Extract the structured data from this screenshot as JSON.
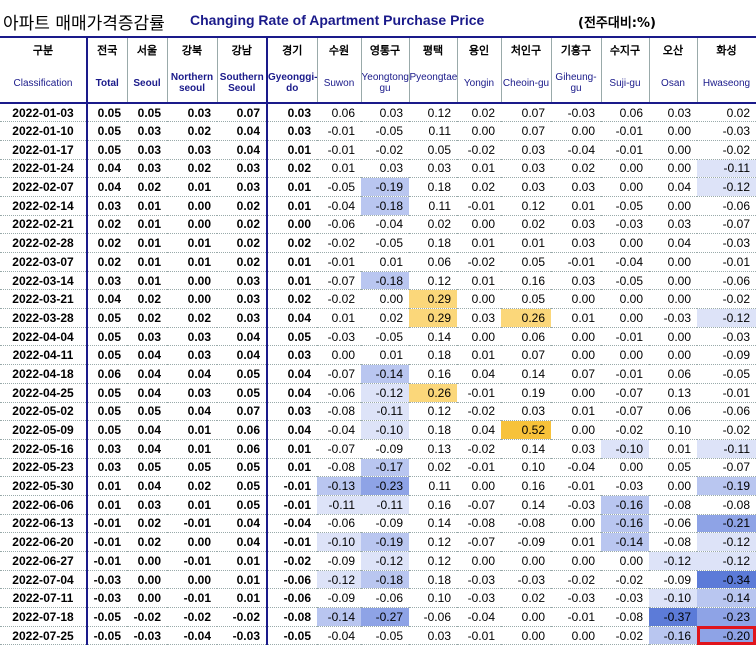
{
  "title": {
    "korean": "아파트 매매가격증감률",
    "english": "Changing Rate of Apartment Purchase Price",
    "unit": "(전주대비:%)"
  },
  "columns": [
    {
      "ko": "구분",
      "en": "Classification"
    },
    {
      "ko": "전국",
      "en": "Total"
    },
    {
      "ko": "서울",
      "en": "Seoul"
    },
    {
      "ko": "강북",
      "en": "Northern seoul"
    },
    {
      "ko": "강남",
      "en": "Southern Seoul"
    },
    {
      "ko": "경기",
      "en": "Gyeonggi-do"
    },
    {
      "ko": "수원",
      "en": "Suwon"
    },
    {
      "ko": "영통구",
      "en": "Yeongtong-gu"
    },
    {
      "ko": "평택",
      "en": "Pyeongtaek"
    },
    {
      "ko": "용인",
      "en": "Yongin"
    },
    {
      "ko": "처인구",
      "en": "Cheoin-gu"
    },
    {
      "ko": "기흥구",
      "en": "Giheung-gu"
    },
    {
      "ko": "수지구",
      "en": "Suji-gu"
    },
    {
      "ko": "오산",
      "en": "Osan"
    },
    {
      "ko": "화성",
      "en": "Hwaseong"
    }
  ],
  "colors": {
    "title_blue": "#1a1a8a",
    "neg_light": "#dde3f8",
    "neg_mid": "#b9c6f0",
    "neg_strong": "#8ea3e6",
    "neg_darkest": "#5c7bd8",
    "pos_light": "#fde7b0",
    "pos_mid": "#fbd77a",
    "pos_strong": "#f7c23a",
    "highlight_border": "#e0141c"
  },
  "rows": [
    {
      "date": "2022-01-03",
      "values": [
        "0.05",
        "0.05",
        "0.03",
        "0.07",
        "0.03",
        "0.06",
        "0.03",
        "0.12",
        "0.02",
        "0.07",
        "-0.03",
        "0.06",
        "0.03",
        "0.02"
      ]
    },
    {
      "date": "2022-01-10",
      "values": [
        "0.05",
        "0.03",
        "0.02",
        "0.04",
        "0.03",
        "-0.01",
        "-0.05",
        "0.11",
        "0.00",
        "0.07",
        "0.00",
        "-0.01",
        "0.00",
        "-0.03"
      ]
    },
    {
      "date": "2022-01-17",
      "values": [
        "0.05",
        "0.03",
        "0.03",
        "0.04",
        "0.01",
        "-0.01",
        "-0.02",
        "0.05",
        "-0.02",
        "0.03",
        "-0.04",
        "-0.01",
        "0.00",
        "-0.02"
      ]
    },
    {
      "date": "2022-01-24",
      "values": [
        "0.04",
        "0.03",
        "0.02",
        "0.03",
        "0.02",
        "0.01",
        "0.03",
        "0.03",
        "0.01",
        "0.03",
        "0.02",
        "0.00",
        "0.00",
        "-0.11"
      ]
    },
    {
      "date": "2022-02-07",
      "values": [
        "0.04",
        "0.02",
        "0.01",
        "0.03",
        "0.01",
        "-0.05",
        "-0.19",
        "0.18",
        "0.02",
        "0.03",
        "0.03",
        "0.00",
        "0.04",
        "-0.12"
      ]
    },
    {
      "date": "2022-02-14",
      "values": [
        "0.03",
        "0.01",
        "0.00",
        "0.02",
        "0.01",
        "-0.04",
        "-0.18",
        "0.11",
        "-0.01",
        "0.12",
        "0.01",
        "-0.05",
        "0.00",
        "-0.06"
      ]
    },
    {
      "date": "2022-02-21",
      "values": [
        "0.02",
        "0.01",
        "0.00",
        "0.02",
        "0.00",
        "-0.06",
        "-0.04",
        "0.02",
        "0.00",
        "0.02",
        "0.03",
        "-0.03",
        "0.03",
        "-0.07"
      ]
    },
    {
      "date": "2022-02-28",
      "values": [
        "0.02",
        "0.01",
        "0.01",
        "0.02",
        "0.02",
        "-0.02",
        "-0.05",
        "0.18",
        "0.01",
        "0.01",
        "0.03",
        "0.00",
        "0.04",
        "-0.03"
      ]
    },
    {
      "date": "2022-03-07",
      "values": [
        "0.02",
        "0.01",
        "0.01",
        "0.02",
        "0.01",
        "-0.01",
        "0.01",
        "0.06",
        "-0.02",
        "0.05",
        "-0.01",
        "-0.04",
        "0.00",
        "-0.01"
      ]
    },
    {
      "date": "2022-03-14",
      "values": [
        "0.03",
        "0.01",
        "0.00",
        "0.03",
        "0.01",
        "-0.07",
        "-0.18",
        "0.12",
        "0.01",
        "0.16",
        "0.03",
        "-0.05",
        "0.00",
        "-0.06"
      ]
    },
    {
      "date": "2022-03-21",
      "values": [
        "0.04",
        "0.02",
        "0.00",
        "0.03",
        "0.02",
        "-0.02",
        "0.00",
        "0.29",
        "0.00",
        "0.05",
        "0.00",
        "0.00",
        "0.00",
        "-0.02"
      ]
    },
    {
      "date": "2022-03-28",
      "values": [
        "0.05",
        "0.02",
        "0.02",
        "0.03",
        "0.04",
        "0.01",
        "0.02",
        "0.29",
        "0.03",
        "0.26",
        "0.01",
        "0.00",
        "-0.03",
        "-0.12"
      ]
    },
    {
      "date": "2022-04-04",
      "values": [
        "0.05",
        "0.03",
        "0.03",
        "0.04",
        "0.05",
        "-0.03",
        "-0.05",
        "0.14",
        "0.00",
        "0.06",
        "0.00",
        "-0.01",
        "0.00",
        "-0.03"
      ]
    },
    {
      "date": "2022-04-11",
      "values": [
        "0.05",
        "0.04",
        "0.03",
        "0.04",
        "0.03",
        "0.00",
        "0.01",
        "0.18",
        "0.01",
        "0.07",
        "0.00",
        "0.00",
        "0.00",
        "-0.09"
      ]
    },
    {
      "date": "2022-04-18",
      "values": [
        "0.06",
        "0.04",
        "0.04",
        "0.05",
        "0.04",
        "-0.07",
        "-0.14",
        "0.16",
        "0.04",
        "0.14",
        "0.07",
        "-0.01",
        "0.06",
        "-0.05"
      ]
    },
    {
      "date": "2022-04-25",
      "values": [
        "0.05",
        "0.04",
        "0.03",
        "0.05",
        "0.04",
        "-0.06",
        "-0.12",
        "0.26",
        "-0.01",
        "0.19",
        "0.00",
        "-0.07",
        "0.13",
        "-0.01"
      ]
    },
    {
      "date": "2022-05-02",
      "values": [
        "0.05",
        "0.05",
        "0.04",
        "0.07",
        "0.03",
        "-0.08",
        "-0.11",
        "0.12",
        "-0.02",
        "0.03",
        "0.01",
        "-0.07",
        "0.06",
        "-0.06"
      ]
    },
    {
      "date": "2022-05-09",
      "values": [
        "0.05",
        "0.04",
        "0.01",
        "0.06",
        "0.04",
        "-0.04",
        "-0.10",
        "0.18",
        "0.04",
        "0.52",
        "0.00",
        "-0.02",
        "0.10",
        "-0.02"
      ]
    },
    {
      "date": "2022-05-16",
      "values": [
        "0.03",
        "0.04",
        "0.01",
        "0.06",
        "0.01",
        "-0.07",
        "-0.09",
        "0.13",
        "-0.02",
        "0.14",
        "0.03",
        "-0.10",
        "0.01",
        "-0.11"
      ]
    },
    {
      "date": "2022-05-23",
      "values": [
        "0.03",
        "0.05",
        "0.05",
        "0.05",
        "0.01",
        "-0.08",
        "-0.17",
        "0.02",
        "-0.01",
        "0.10",
        "-0.04",
        "0.00",
        "0.05",
        "-0.07"
      ]
    },
    {
      "date": "2022-05-30",
      "values": [
        "0.01",
        "0.04",
        "0.02",
        "0.05",
        "-0.01",
        "-0.13",
        "-0.23",
        "0.11",
        "0.00",
        "0.16",
        "-0.01",
        "-0.03",
        "0.00",
        "-0.19"
      ]
    },
    {
      "date": "2022-06-06",
      "values": [
        "0.01",
        "0.03",
        "0.01",
        "0.05",
        "-0.01",
        "-0.11",
        "-0.11",
        "0.16",
        "-0.07",
        "0.14",
        "-0.03",
        "-0.16",
        "-0.08",
        "-0.08"
      ]
    },
    {
      "date": "2022-06-13",
      "values": [
        "-0.01",
        "0.02",
        "-0.01",
        "0.04",
        "-0.04",
        "-0.06",
        "-0.09",
        "0.14",
        "-0.08",
        "-0.08",
        "0.00",
        "-0.16",
        "-0.06",
        "-0.21"
      ]
    },
    {
      "date": "2022-06-20",
      "values": [
        "-0.01",
        "0.02",
        "0.00",
        "0.04",
        "-0.01",
        "-0.10",
        "-0.19",
        "0.12",
        "-0.07",
        "-0.09",
        "0.01",
        "-0.14",
        "-0.08",
        "-0.12"
      ]
    },
    {
      "date": "2022-06-27",
      "values": [
        "-0.01",
        "0.00",
        "-0.01",
        "0.01",
        "-0.02",
        "-0.09",
        "-0.12",
        "0.12",
        "0.00",
        "0.00",
        "0.00",
        "0.00",
        "-0.12",
        "-0.12"
      ]
    },
    {
      "date": "2022-07-04",
      "values": [
        "-0.03",
        "0.00",
        "0.00",
        "0.01",
        "-0.06",
        "-0.12",
        "-0.18",
        "0.18",
        "-0.03",
        "-0.03",
        "-0.02",
        "-0.02",
        "-0.09",
        "-0.34"
      ]
    },
    {
      "date": "2022-07-11",
      "values": [
        "-0.03",
        "0.00",
        "-0.01",
        "0.01",
        "-0.06",
        "-0.09",
        "-0.06",
        "0.10",
        "-0.03",
        "0.02",
        "-0.03",
        "-0.03",
        "-0.10",
        "-0.14"
      ]
    },
    {
      "date": "2022-07-18",
      "values": [
        "-0.05",
        "-0.02",
        "-0.02",
        "-0.02",
        "-0.08",
        "-0.14",
        "-0.27",
        "-0.06",
        "-0.04",
        "0.00",
        "-0.01",
        "-0.08",
        "-0.37",
        "-0.23"
      ]
    },
    {
      "date": "2022-07-25",
      "values": [
        "-0.05",
        "-0.03",
        "-0.04",
        "-0.03",
        "-0.05",
        "-0.04",
        "-0.05",
        "0.03",
        "-0.01",
        "0.00",
        "0.00",
        "-0.02",
        "-0.16",
        "-0.20"
      ]
    }
  ]
}
